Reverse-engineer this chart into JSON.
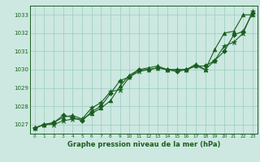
{
  "title": "Graphe pression niveau de la mer (hPa)",
  "xlim": [
    -0.5,
    23.5
  ],
  "ylim": [
    1026.5,
    1033.5
  ],
  "yticks": [
    1027,
    1028,
    1029,
    1030,
    1031,
    1032,
    1033
  ],
  "xticks": [
    0,
    1,
    2,
    3,
    4,
    5,
    6,
    7,
    8,
    9,
    10,
    11,
    12,
    13,
    14,
    15,
    16,
    17,
    18,
    19,
    20,
    21,
    22,
    23
  ],
  "bg_color": "#cce8e0",
  "grid_color": "#99ccc0",
  "line_color": "#1a5e20",
  "text_color": "#1a5e20",
  "series": [
    [
      1026.8,
      1027.0,
      1027.1,
      1027.4,
      1027.5,
      1027.3,
      1027.6,
      1027.9,
      1028.3,
      1029.1,
      1029.7,
      1030.0,
      1030.1,
      1030.2,
      1030.0,
      1030.0,
      1030.0,
      1030.3,
      1030.0,
      1031.1,
      1032.0,
      1032.1,
      1033.0,
      1033.0
    ],
    [
      1026.8,
      1027.0,
      1027.1,
      1027.5,
      1027.4,
      1027.2,
      1027.7,
      1028.0,
      1028.7,
      1029.4,
      1029.6,
      1030.0,
      1030.0,
      1030.1,
      1030.0,
      1029.9,
      1030.0,
      1030.2,
      1030.2,
      1030.5,
      1031.0,
      1031.9,
      1032.1,
      1033.1
    ],
    [
      1026.8,
      1027.0,
      1027.0,
      1027.2,
      1027.3,
      1027.3,
      1027.9,
      1028.2,
      1028.8,
      1028.9,
      1029.6,
      1029.9,
      1030.0,
      1030.1,
      1030.0,
      1030.0,
      1030.0,
      1030.2,
      1030.0,
      1030.5,
      1031.3,
      1031.5,
      1032.0,
      1033.2
    ]
  ],
  "markers": [
    "^",
    "D",
    "*"
  ],
  "marker_sizes": [
    3.5,
    3.0,
    5.0
  ],
  "linewidths": [
    0.8,
    0.8,
    0.8
  ]
}
